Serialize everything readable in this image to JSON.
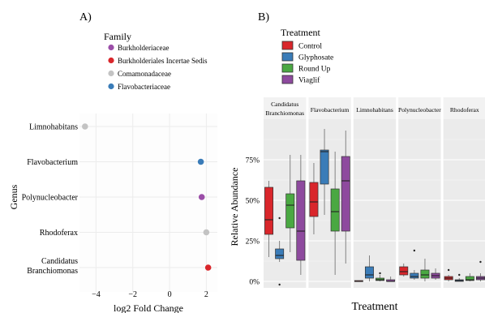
{
  "panels": {
    "a": {
      "label": "A)"
    },
    "b": {
      "label": "B)"
    }
  },
  "chart_data": [
    {
      "type": "scatter",
      "legend": {
        "title": "Family",
        "items": [
          {
            "name": "Burkholderiaceae",
            "color": "#9b4ea8"
          },
          {
            "name": "Burkholderiales Incertae Sedis",
            "color": "#d9262b"
          },
          {
            "name": "Comamonadaceae",
            "color": "#c3c3c3"
          },
          {
            "name": "Flavobacteriaceae",
            "color": "#3a7cb8"
          }
        ]
      },
      "ylabel": "Genus",
      "xlabel": "log2 Fold Change",
      "categories": [
        "Limnohabitans",
        "Flavobacterium",
        "Polynucleobacter",
        "Rhodoferax",
        "Candidatus Branchiomonas"
      ],
      "xticks": [
        -4,
        -2,
        0,
        2
      ],
      "xlim": [
        -4.9,
        2.6
      ],
      "points": [
        {
          "genus": "Limnohabitans",
          "x": -4.6,
          "family": "Comamonadaceae"
        },
        {
          "genus": "Flavobacterium",
          "x": 1.7,
          "family": "Flavobacteriaceae"
        },
        {
          "genus": "Polynucleobacter",
          "x": 1.75,
          "family": "Burkholderiaceae"
        },
        {
          "genus": "Rhodoferax",
          "x": 2.0,
          "family": "Comamonadaceae"
        },
        {
          "genus": "Candidatus Branchiomonas",
          "x": 2.1,
          "family": "Burkholderiales Incertae Sedis"
        }
      ]
    },
    {
      "type": "box",
      "legend": {
        "title": "Treatment",
        "items": [
          {
            "name": "Control",
            "color": "#d9262b"
          },
          {
            "name": "Glyphosate",
            "color": "#3a7cb8"
          },
          {
            "name": "Round Up",
            "color": "#4aa842"
          },
          {
            "name": "Viaglif",
            "color": "#8e4a9e"
          }
        ]
      },
      "ylabel": "Relative Abundance",
      "xlabel": "Treatment",
      "yticks": [
        "0%",
        "25%",
        "50%",
        "75%"
      ],
      "ylim": [
        -0.04,
        1.0
      ],
      "facets": [
        {
          "title": [
            "Candidatus",
            "Branchiomonas"
          ],
          "boxes": [
            {
              "treatment": "Control",
              "min": 0.15,
              "q1": 0.29,
              "median": 0.38,
              "q3": 0.58,
              "max": 0.62,
              "outliers": []
            },
            {
              "treatment": "Glyphosate",
              "min": 0.12,
              "q1": 0.14,
              "median": 0.16,
              "q3": 0.2,
              "max": 0.25,
              "outliers": [
                0.39,
                -0.02
              ]
            },
            {
              "treatment": "Round Up",
              "min": 0.18,
              "q1": 0.33,
              "median": 0.47,
              "q3": 0.54,
              "max": 0.78,
              "outliers": []
            },
            {
              "treatment": "Viaglif",
              "min": 0.04,
              "q1": 0.13,
              "median": 0.31,
              "q3": 0.62,
              "max": 0.78,
              "outliers": []
            }
          ]
        },
        {
          "title": [
            "Flavobacterium"
          ],
          "boxes": [
            {
              "treatment": "Control",
              "min": 0.29,
              "q1": 0.4,
              "median": 0.49,
              "q3": 0.61,
              "max": 0.73,
              "outliers": []
            },
            {
              "treatment": "Glyphosate",
              "min": 0.41,
              "q1": 0.6,
              "median": 0.8,
              "q3": 0.81,
              "max": 0.94,
              "outliers": []
            },
            {
              "treatment": "Round Up",
              "min": 0.04,
              "q1": 0.31,
              "median": 0.43,
              "q3": 0.57,
              "max": 0.8,
              "outliers": []
            },
            {
              "treatment": "Viaglif",
              "min": 0.11,
              "q1": 0.31,
              "median": 0.62,
              "q3": 0.77,
              "max": 0.93,
              "outliers": []
            }
          ]
        },
        {
          "title": [
            "Limnohabitans"
          ],
          "boxes": [
            {
              "treatment": "Control",
              "min": 0.0,
              "q1": 0.0,
              "median": 0.0,
              "q3": 0.005,
              "max": 0.005,
              "outliers": []
            },
            {
              "treatment": "Glyphosate",
              "min": 0.0,
              "q1": 0.02,
              "median": 0.04,
              "q3": 0.09,
              "max": 0.16,
              "outliers": []
            },
            {
              "treatment": "Round Up",
              "min": 0.0,
              "q1": 0.005,
              "median": 0.01,
              "q3": 0.02,
              "max": 0.04,
              "outliers": [
                0.05
              ]
            },
            {
              "treatment": "Viaglif",
              "min": 0.0,
              "q1": 0.0,
              "median": 0.0,
              "q3": 0.01,
              "max": 0.03,
              "outliers": []
            }
          ]
        },
        {
          "title": [
            "Polynucleobacter"
          ],
          "boxes": [
            {
              "treatment": "Control",
              "min": 0.03,
              "q1": 0.04,
              "median": 0.06,
              "q3": 0.09,
              "max": 0.11,
              "outliers": []
            },
            {
              "treatment": "Glyphosate",
              "min": 0.01,
              "q1": 0.02,
              "median": 0.03,
              "q3": 0.05,
              "max": 0.07,
              "outliers": [
                0.19
              ]
            },
            {
              "treatment": "Round Up",
              "min": 0.0,
              "q1": 0.02,
              "median": 0.04,
              "q3": 0.07,
              "max": 0.14,
              "outliers": []
            },
            {
              "treatment": "Viaglif",
              "min": 0.01,
              "q1": 0.02,
              "median": 0.035,
              "q3": 0.05,
              "max": 0.08,
              "outliers": []
            }
          ]
        },
        {
          "title": [
            "Rhodoferax"
          ],
          "boxes": [
            {
              "treatment": "Control",
              "min": 0.0,
              "q1": 0.01,
              "median": 0.02,
              "q3": 0.03,
              "max": 0.04,
              "outliers": [
                0.07
              ]
            },
            {
              "treatment": "Glyphosate",
              "min": 0.0,
              "q1": 0.0,
              "median": 0.005,
              "q3": 0.01,
              "max": 0.02,
              "outliers": [
                0.04
              ]
            },
            {
              "treatment": "Round Up",
              "min": 0.0,
              "q1": 0.005,
              "median": 0.01,
              "q3": 0.03,
              "max": 0.05,
              "outliers": []
            },
            {
              "treatment": "Viaglif",
              "min": 0.0,
              "q1": 0.01,
              "median": 0.02,
              "q3": 0.03,
              "max": 0.05,
              "outliers": [
                0.12
              ]
            }
          ]
        }
      ]
    }
  ]
}
